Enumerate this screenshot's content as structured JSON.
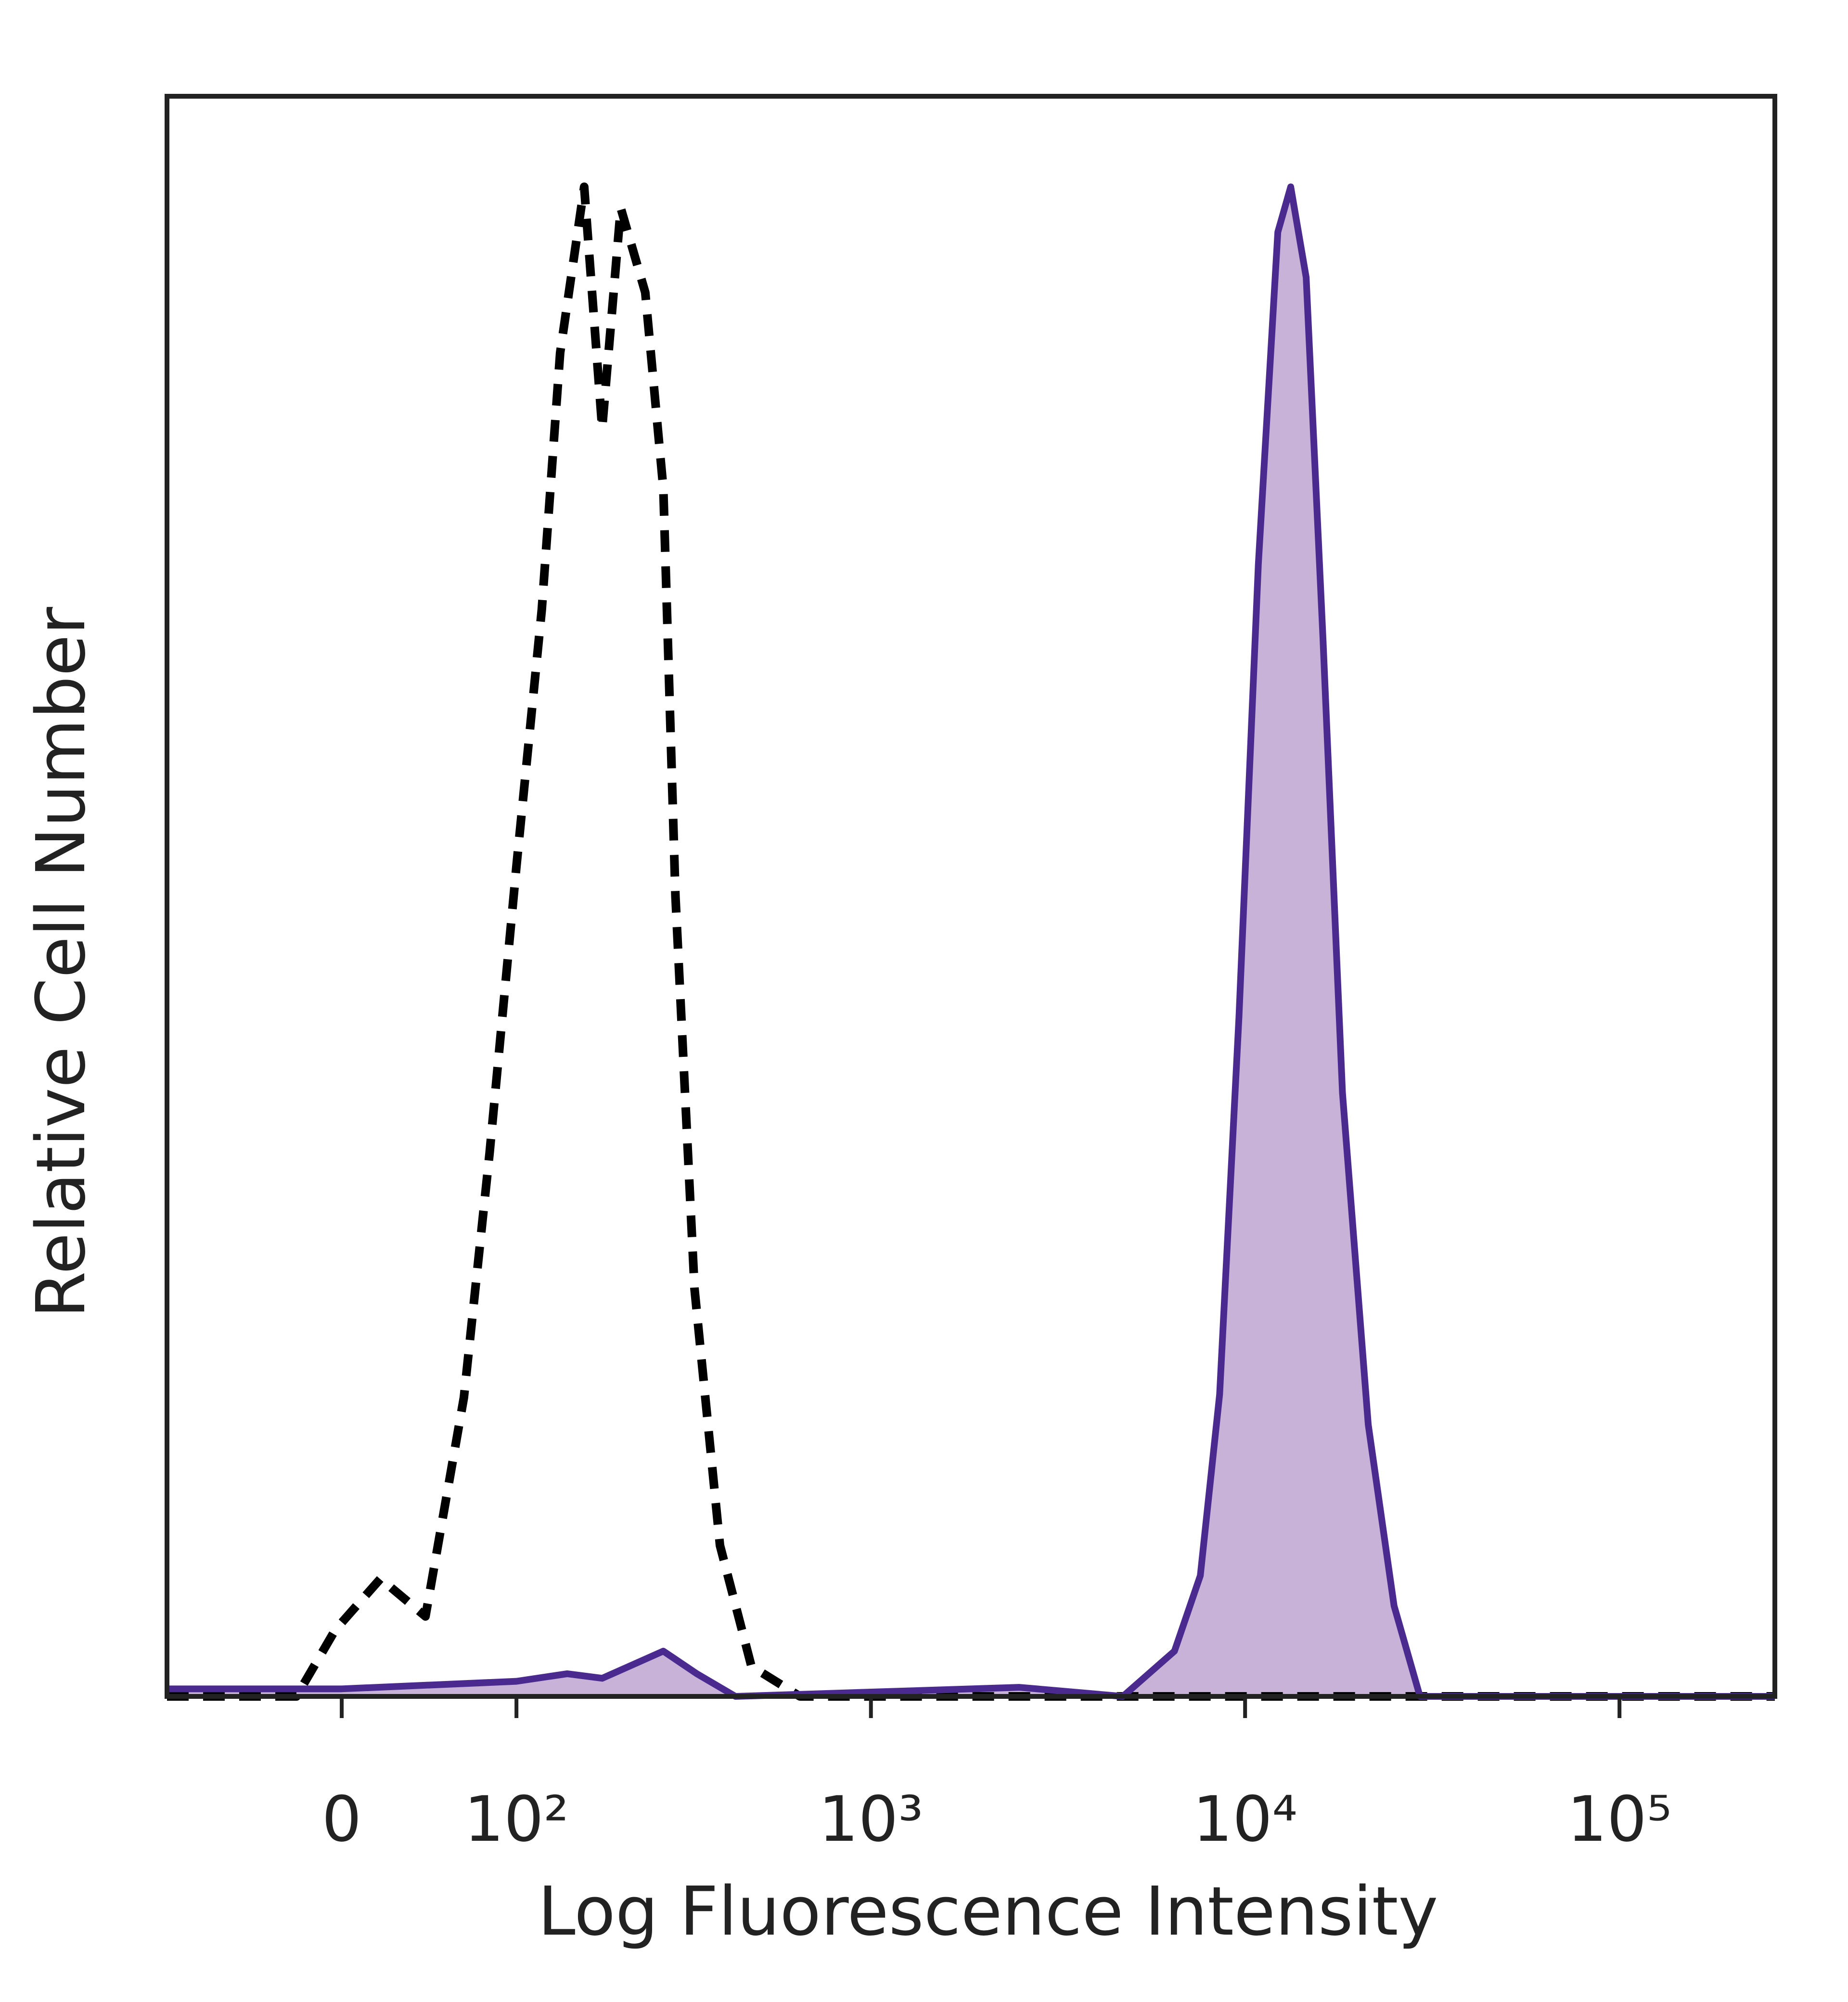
{
  "chart_data": {
    "type": "histogram-line",
    "x_label": "Log Fluorescence Intensity",
    "y_label": "Relative Cell Number",
    "xscale": "biexponential",
    "xlim": [
      -100,
      260000
    ],
    "xticks": [
      0,
      {
        "value": 100,
        "label": "10²"
      },
      {
        "value": 1000,
        "label": "10³"
      },
      {
        "value": 10000,
        "label": "10⁴"
      },
      {
        "value": 100000,
        "label": "10⁵"
      }
    ],
    "ylim": [
      0,
      106
    ],
    "series": [
      {
        "color": "#4b2a8f",
        "fill": "#c8b2d8",
        "dash": false,
        "x": [
          -100,
          0,
          100,
          145,
          184,
          274,
          339,
          432,
          2497,
          4715,
          6477,
          7593,
          8550,
          9630,
          10850,
          12230,
          13240,
          14560,
          16150,
          18200,
          21330,
          25000,
          29320,
          260000
        ],
        "values": [
          0.5,
          0.5,
          1,
          1.5,
          1.2,
          3,
          1.5,
          0,
          0.6,
          0,
          3,
          8,
          20,
          45,
          75,
          97,
          100,
          94,
          70,
          40,
          18,
          6,
          0,
          0
        ]
      },
      {
        "color": "#000000",
        "dash": true,
        "x": [
          -100,
          -21.8,
          -3.1,
          18.6,
          41.6,
          63.7,
          80.4,
          100,
          121,
          138,
          163,
          184,
          208,
          244,
          274,
          296,
          334,
          392,
          477,
          645,
          1222,
          260000
        ],
        "values": [
          0,
          0,
          4.4,
          7.8,
          5.3,
          19.8,
          36,
          55,
          72,
          89,
          100,
          84,
          98.6,
          93,
          80,
          53,
          27,
          10,
          2,
          0,
          0,
          0
        ]
      }
    ]
  }
}
